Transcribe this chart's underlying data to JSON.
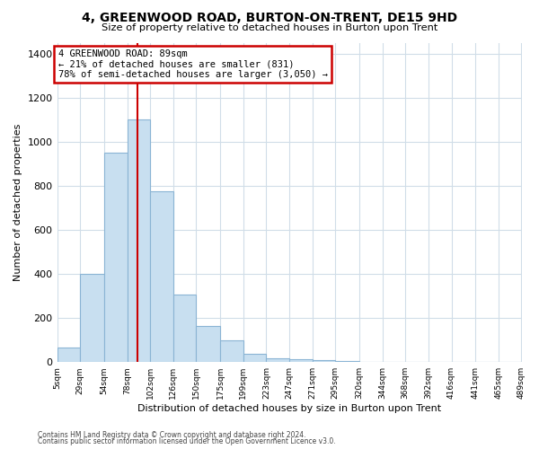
{
  "title": "4, GREENWOOD ROAD, BURTON-ON-TRENT, DE15 9HD",
  "subtitle": "Size of property relative to detached houses in Burton upon Trent",
  "xlabel": "Distribution of detached houses by size in Burton upon Trent",
  "ylabel": "Number of detached properties",
  "bar_color": "#c8dff0",
  "bar_edge_color": "#8ab4d4",
  "bin_labels": [
    "5sqm",
    "29sqm",
    "54sqm",
    "78sqm",
    "102sqm",
    "126sqm",
    "150sqm",
    "175sqm",
    "199sqm",
    "223sqm",
    "247sqm",
    "271sqm",
    "295sqm",
    "320sqm",
    "344sqm",
    "368sqm",
    "392sqm",
    "416sqm",
    "441sqm",
    "465sqm",
    "489sqm"
  ],
  "bar_heights": [
    65,
    400,
    950,
    1100,
    775,
    305,
    165,
    100,
    38,
    18,
    12,
    8,
    5,
    0,
    0,
    0,
    0,
    0,
    0,
    0
  ],
  "ylim": [
    0,
    1450
  ],
  "yticks": [
    0,
    200,
    400,
    600,
    800,
    1000,
    1200,
    1400
  ],
  "property_line_x": 89,
  "bin_edges_sqm": [
    5,
    29,
    54,
    78,
    102,
    126,
    150,
    175,
    199,
    223,
    247,
    271,
    295,
    320,
    344,
    368,
    392,
    416,
    441,
    465,
    489
  ],
  "annotation_title": "4 GREENWOOD ROAD: 89sqm",
  "annotation_line1": "← 21% of detached houses are smaller (831)",
  "annotation_line2": "78% of semi-detached houses are larger (3,050) →",
  "annotation_box_color": "#ffffff",
  "annotation_box_edge": "#cc0000",
  "red_line_color": "#cc0000",
  "footer1": "Contains HM Land Registry data © Crown copyright and database right 2024.",
  "footer2": "Contains public sector information licensed under the Open Government Licence v3.0.",
  "background_color": "#ffffff",
  "grid_color": "#d0dde8"
}
